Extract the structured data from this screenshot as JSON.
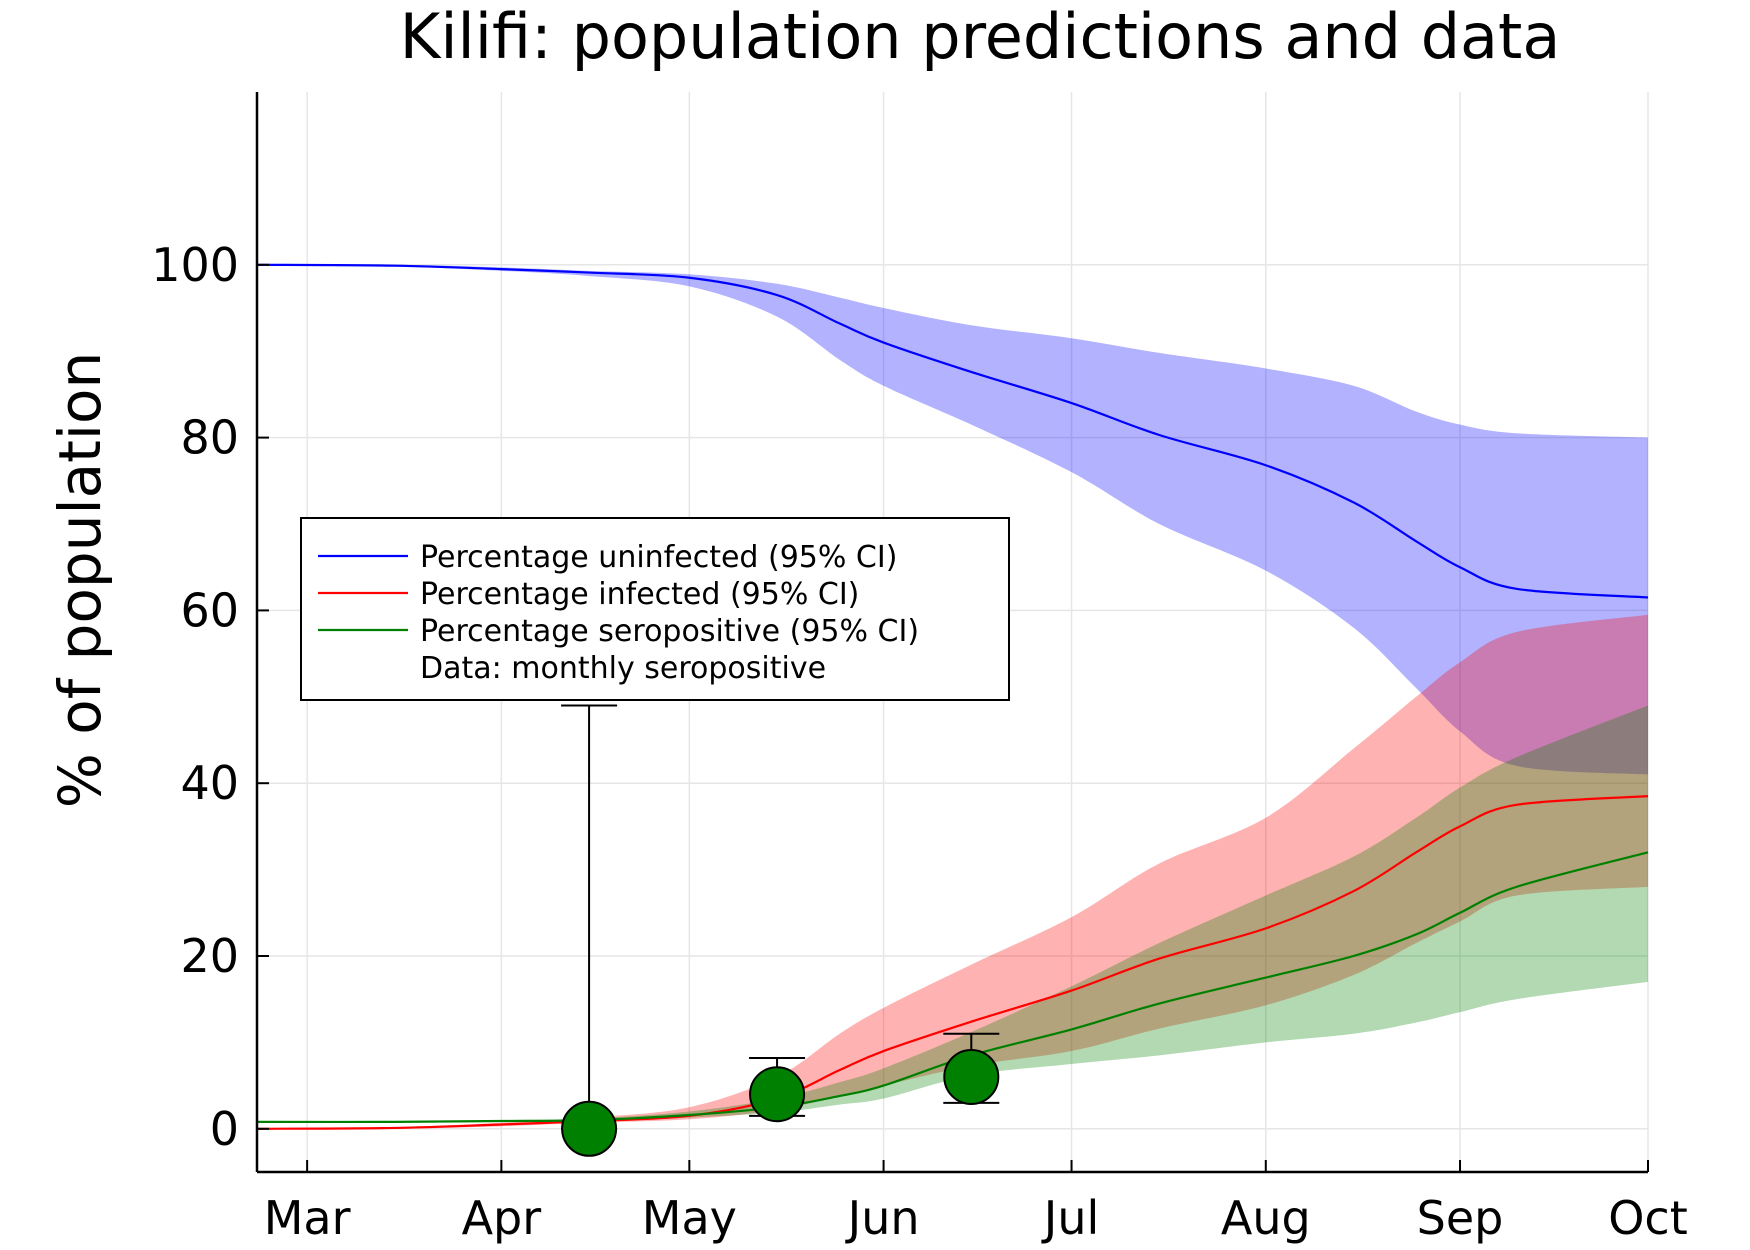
{
  "chart_data": {
    "type": "line",
    "title": "Kilifi: population predictions and data",
    "xlabel": "",
    "ylabel": "% of population",
    "ylim": [
      -5,
      120
    ],
    "xlim": [
      "2020-02-22",
      "2020-10-01"
    ],
    "x_ticks": [
      {
        "label": "Mar",
        "date": "2020-03-01"
      },
      {
        "label": "Apr",
        "date": "2020-04-01"
      },
      {
        "label": "May",
        "date": "2020-05-01"
      },
      {
        "label": "Jun",
        "date": "2020-06-01"
      },
      {
        "label": "Jul",
        "date": "2020-07-01"
      },
      {
        "label": "Aug",
        "date": "2020-08-01"
      },
      {
        "label": "Sep",
        "date": "2020-09-01"
      },
      {
        "label": "Oct",
        "date": "2020-10-01"
      }
    ],
    "y_ticks": [
      0,
      20,
      40,
      60,
      80,
      100
    ],
    "grid": true,
    "legend_position": "center-left",
    "series": [
      {
        "name": "Percentage uninfected (95% CI)",
        "color": "#0000ff",
        "band_color": "#0000ff",
        "x": [
          "2020-02-22",
          "2020-03-15",
          "2020-04-01",
          "2020-04-15",
          "2020-05-01",
          "2020-05-15",
          "2020-05-25",
          "2020-06-01",
          "2020-06-15",
          "2020-07-01",
          "2020-07-15",
          "2020-08-01",
          "2020-08-15",
          "2020-08-25",
          "2020-09-01",
          "2020-09-10",
          "2020-10-01"
        ],
        "values": [
          100,
          99.9,
          99.5,
          99.1,
          98.5,
          96.5,
          93.2,
          91,
          87.6,
          84,
          80.3,
          76.8,
          72.5,
          68,
          65,
          62.5,
          61.5
        ],
        "lower": [
          100,
          99.8,
          99.3,
          98.7,
          97.5,
          94,
          89,
          86,
          81.5,
          76,
          70,
          64.6,
          58,
          51,
          46,
          42,
          41
        ],
        "upper": [
          100,
          100,
          99.7,
          99.3,
          98.9,
          97.8,
          96.2,
          95,
          93,
          91.5,
          89.8,
          88,
          86,
          83,
          81.5,
          80.5,
          80
        ]
      },
      {
        "name": "Percentage infected (95% CI)",
        "color": "#ff0000",
        "band_color": "#ff0000",
        "x": [
          "2020-02-22",
          "2020-03-15",
          "2020-04-01",
          "2020-04-15",
          "2020-05-01",
          "2020-05-15",
          "2020-05-25",
          "2020-06-01",
          "2020-06-15",
          "2020-07-01",
          "2020-07-15",
          "2020-08-01",
          "2020-08-15",
          "2020-08-25",
          "2020-09-01",
          "2020-09-10",
          "2020-10-01"
        ],
        "values": [
          0,
          0.1,
          0.5,
          0.9,
          1.5,
          3.5,
          6.8,
          9,
          12.4,
          16,
          19.7,
          23.2,
          27.5,
          32,
          35,
          37.5,
          38.5
        ],
        "lower": [
          0,
          0,
          0.3,
          0.7,
          1.1,
          2.2,
          3.8,
          5,
          7.3,
          9,
          11.6,
          14.3,
          17.8,
          21.5,
          24,
          27,
          28
        ],
        "upper": [
          0,
          0.2,
          0.7,
          1.3,
          2.5,
          6,
          11,
          14,
          19,
          24.5,
          30.7,
          36,
          44,
          50,
          54,
          57.5,
          59.5
        ]
      },
      {
        "name": "Percentage seropositive (95% CI)",
        "color": "#008000",
        "band_color": "#008000",
        "x": [
          "2020-02-22",
          "2020-03-15",
          "2020-04-01",
          "2020-04-15",
          "2020-05-01",
          "2020-05-15",
          "2020-05-25",
          "2020-06-01",
          "2020-06-15",
          "2020-07-01",
          "2020-07-15",
          "2020-08-01",
          "2020-08-15",
          "2020-08-25",
          "2020-09-01",
          "2020-09-10",
          "2020-10-01"
        ],
        "values": [
          0.8,
          0.8,
          0.9,
          1,
          1.6,
          2.5,
          3.8,
          5,
          8.5,
          11.5,
          14.5,
          17.5,
          20,
          22.5,
          25,
          28,
          32
        ],
        "lower": [
          0.8,
          0.8,
          0.8,
          0.9,
          1.3,
          1.9,
          2.8,
          3.5,
          6.2,
          7.5,
          8.5,
          10,
          11,
          12.3,
          13.5,
          15,
          17
        ],
        "upper": [
          0.8,
          0.9,
          1,
          1.2,
          2,
          3.5,
          5.4,
          7,
          11.2,
          16.5,
          21.5,
          27,
          31.5,
          36,
          39.5,
          43,
          49
        ]
      }
    ],
    "data_points": {
      "name": "Data: monthly seropositive",
      "color": "#008000",
      "points": [
        {
          "x": "2020-04-15",
          "y": 0,
          "lower": 0,
          "upper": 49
        },
        {
          "x": "2020-05-15",
          "y": 4,
          "lower": 1.5,
          "upper": 8.2
        },
        {
          "x": "2020-06-15",
          "y": 6,
          "lower": 3,
          "upper": 11
        }
      ]
    }
  }
}
